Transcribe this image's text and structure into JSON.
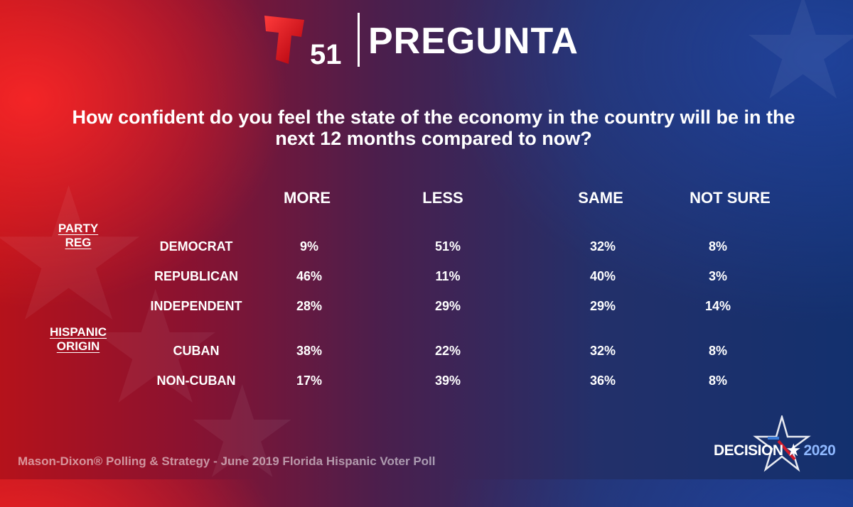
{
  "header": {
    "logo_number": "51",
    "title": "PREGUNTA"
  },
  "chart_data": {
    "type": "table",
    "title": "How confident do you feel the state of the economy in the country will be in the next 12 months compared to now?",
    "columns": [
      "MORE",
      "LESS",
      "SAME",
      "NOT SURE"
    ],
    "groups": [
      {
        "label_lines": [
          "PARTY",
          "REG"
        ],
        "rows": [
          {
            "label": "DEMOCRAT",
            "values": [
              "9%",
              "51%",
              "32%",
              "8%"
            ]
          },
          {
            "label": "REPUBLICAN",
            "values": [
              "46%",
              "11%",
              "40%",
              "3%"
            ]
          },
          {
            "label": "INDEPENDENT",
            "values": [
              "28%",
              "29%",
              "29%",
              "14%"
            ]
          }
        ]
      },
      {
        "label_lines": [
          "HISPANIC",
          "ORIGIN"
        ],
        "rows": [
          {
            "label": "CUBAN",
            "values": [
              "38%",
              "22%",
              "32%",
              "8%"
            ]
          },
          {
            "label": "NON-CUBAN",
            "values": [
              "17%",
              "39%",
              "36%",
              "8%"
            ]
          }
        ]
      }
    ]
  },
  "footer": {
    "source": "Mason-Dixon® Polling & Strategy - June 2019 Florida Hispanic Voter Poll"
  },
  "badge": {
    "word": "DECISION",
    "star": "★",
    "year": "2020"
  },
  "colors": {
    "red": "#b5121b",
    "blue": "#13306e",
    "logo_red": "#e4101f"
  }
}
